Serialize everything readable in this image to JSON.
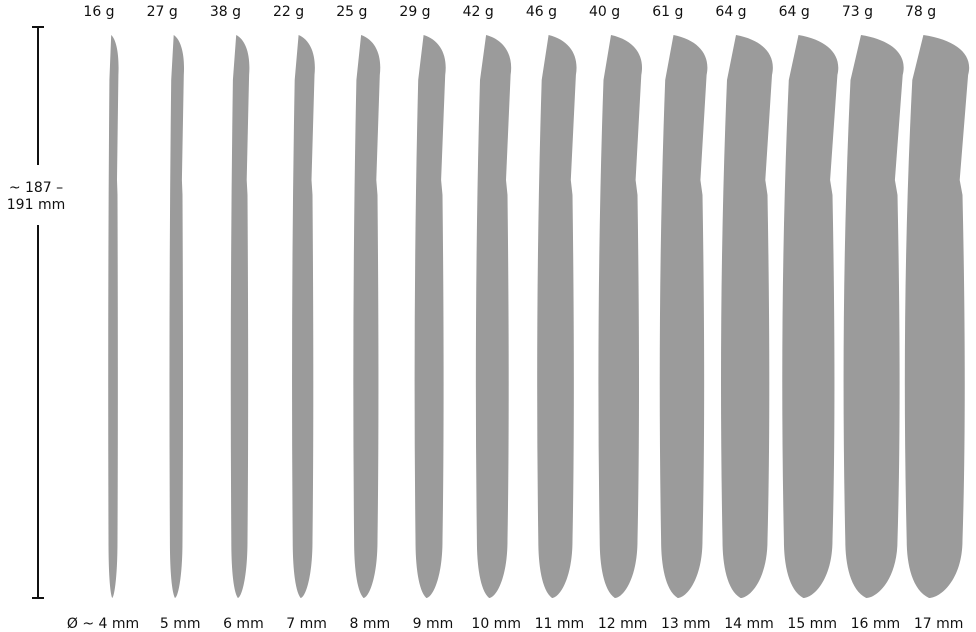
{
  "length_label": [
    "~ 187 –",
    "191 mm"
  ],
  "items": [
    {
      "weight": "16 g",
      "diameter": "Ø ~ 4 mm"
    },
    {
      "weight": "27 g",
      "diameter": "5 mm"
    },
    {
      "weight": "38 g",
      "diameter": "6 mm"
    },
    {
      "weight": "22 g",
      "diameter": "7 mm"
    },
    {
      "weight": "25 g",
      "diameter": "8 mm"
    },
    {
      "weight": "29 g",
      "diameter": "9 mm"
    },
    {
      "weight": "42 g",
      "diameter": "10 mm"
    },
    {
      "weight": "46 g",
      "diameter": "11 mm"
    },
    {
      "weight": "40 g",
      "diameter": "12 mm"
    },
    {
      "weight": "61 g",
      "diameter": "13 mm"
    },
    {
      "weight": "64 g",
      "diameter": "14 mm"
    },
    {
      "weight": "64 g",
      "diameter": "15 mm"
    },
    {
      "weight": "73 g",
      "diameter": "16 mm"
    },
    {
      "weight": "78 g",
      "diameter": "17 mm"
    }
  ]
}
